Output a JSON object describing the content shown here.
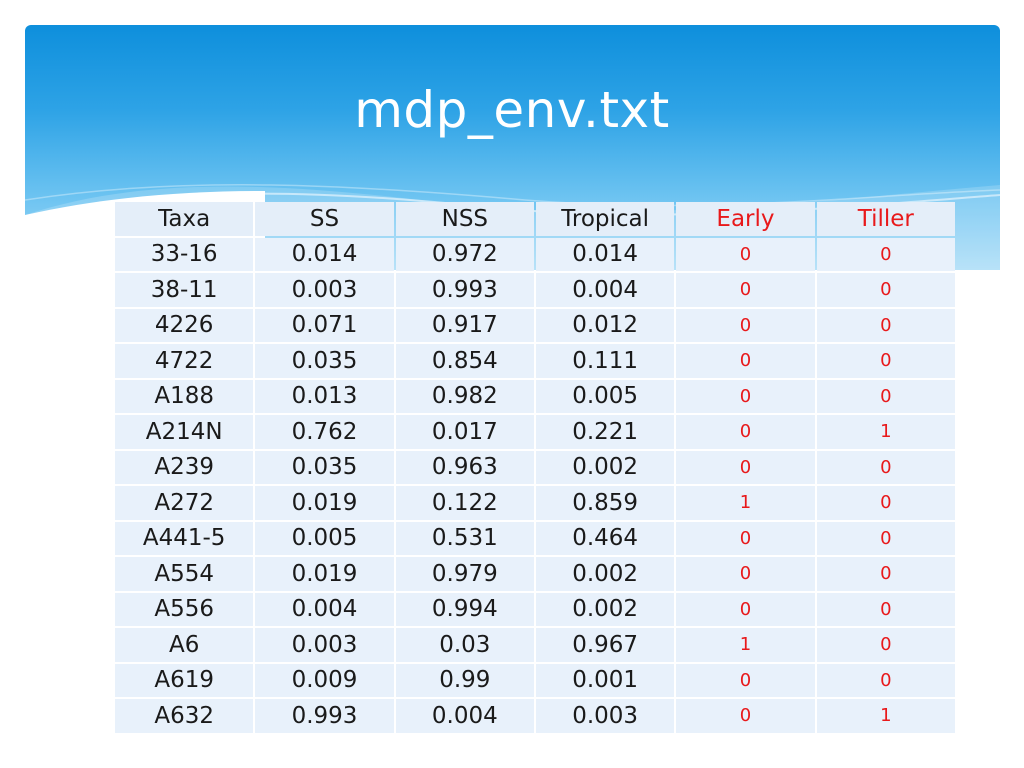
{
  "slide": {
    "title": "mdp_env.txt"
  },
  "colors": {
    "banner_top": "#0e8fdc",
    "banner_bottom": "#a9dcf7",
    "table_fill": "#e8f1fb",
    "highlight_text": "#e8191b"
  },
  "table": {
    "headers": [
      "Taxa",
      "SS",
      "NSS",
      "Tropical",
      "Early",
      "Tiller"
    ],
    "rows": [
      [
        "33-16",
        "0.014",
        "0.972",
        "0.014",
        "0",
        "0"
      ],
      [
        "38-11",
        "0.003",
        "0.993",
        "0.004",
        "0",
        "0"
      ],
      [
        "4226",
        "0.071",
        "0.917",
        "0.012",
        "0",
        "0"
      ],
      [
        "4722",
        "0.035",
        "0.854",
        "0.111",
        "0",
        "0"
      ],
      [
        "A188",
        "0.013",
        "0.982",
        "0.005",
        "0",
        "0"
      ],
      [
        "A214N",
        "0.762",
        "0.017",
        "0.221",
        "0",
        "1"
      ],
      [
        "A239",
        "0.035",
        "0.963",
        "0.002",
        "0",
        "0"
      ],
      [
        "A272",
        "0.019",
        "0.122",
        "0.859",
        "1",
        "0"
      ],
      [
        "A441-5",
        "0.005",
        "0.531",
        "0.464",
        "0",
        "0"
      ],
      [
        "A554",
        "0.019",
        "0.979",
        "0.002",
        "0",
        "0"
      ],
      [
        "A556",
        "0.004",
        "0.994",
        "0.002",
        "0",
        "0"
      ],
      [
        "A6",
        "0.003",
        "0.03",
        "0.967",
        "1",
        "0"
      ],
      [
        "A619",
        "0.009",
        "0.99",
        "0.001",
        "0",
        "0"
      ],
      [
        "A632",
        "0.993",
        "0.004",
        "0.003",
        "0",
        "1"
      ]
    ]
  }
}
